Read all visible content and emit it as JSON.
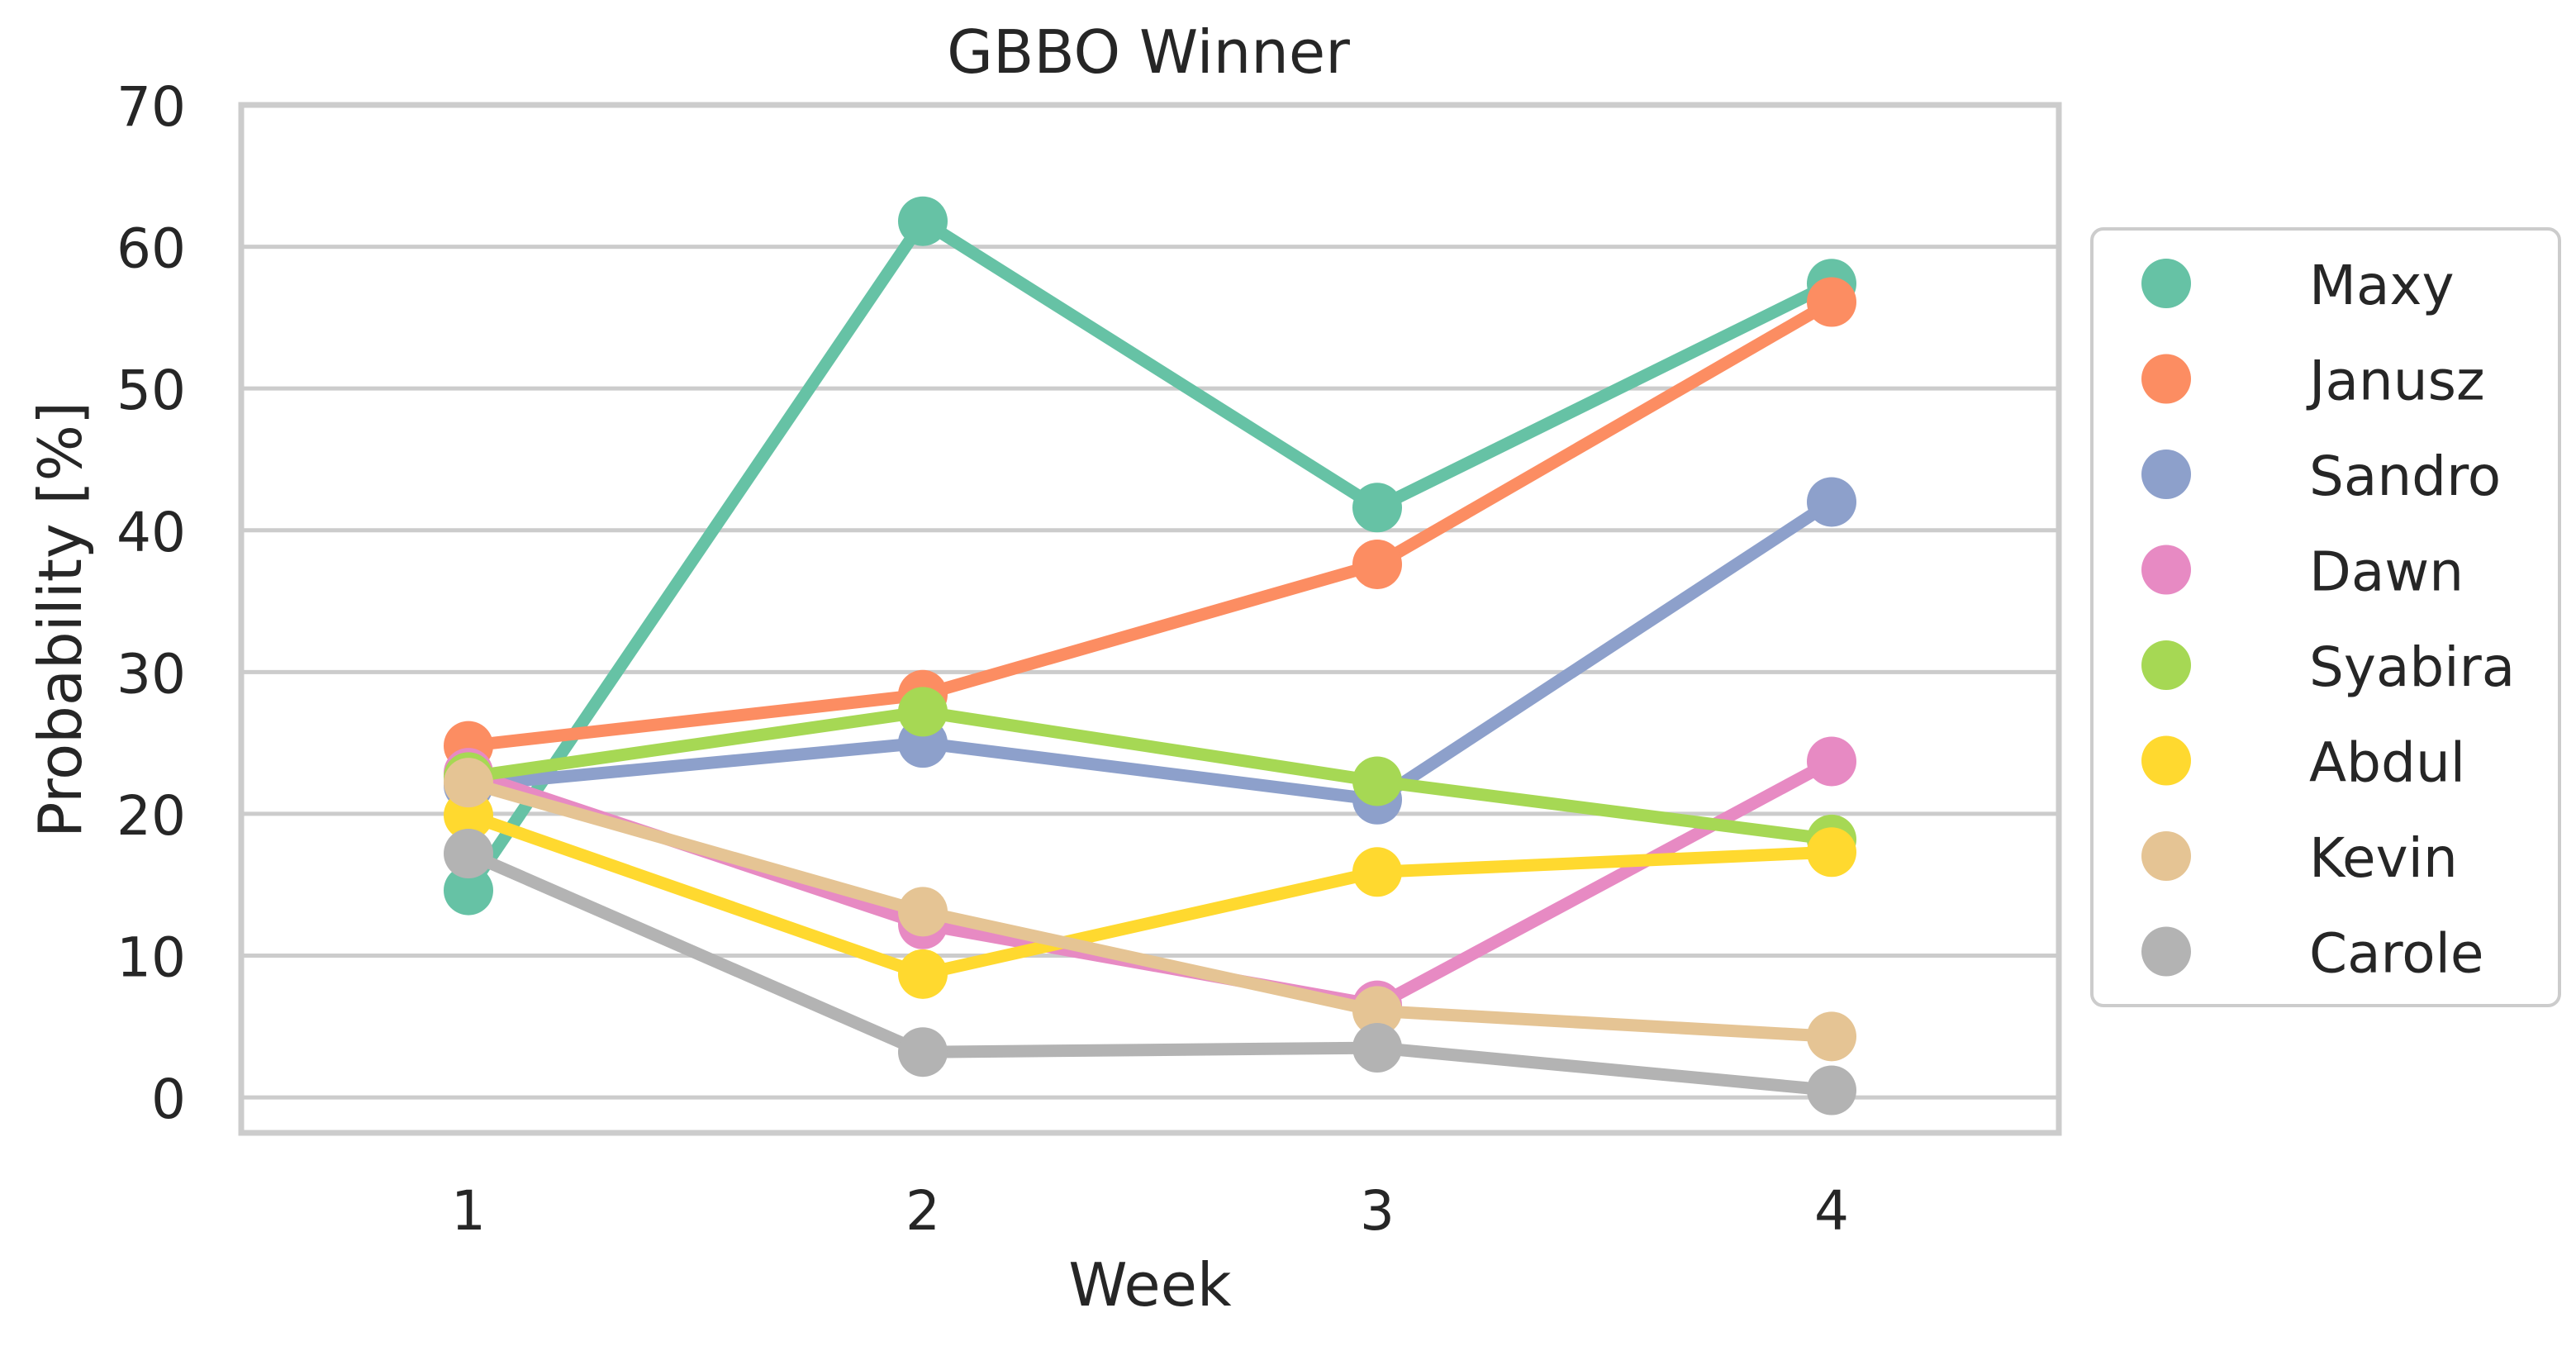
{
  "chart_data": {
    "type": "line",
    "title": "GBBO Winner",
    "xlabel": "Week",
    "ylabel": "Probability [%]",
    "x": [
      1,
      2,
      3,
      4
    ],
    "xlim": [
      0.5,
      4.5
    ],
    "ylim": [
      -2.5,
      70
    ],
    "yticks": [
      0,
      10,
      20,
      30,
      40,
      50,
      60,
      70
    ],
    "grid": "horizontal",
    "legend_position": "right-outside",
    "series": [
      {
        "name": "Maxy",
        "color": "#66c2a5",
        "values": [
          14.6,
          61.8,
          41.6,
          57.4
        ]
      },
      {
        "name": "Janusz",
        "color": "#fc8d62",
        "values": [
          24.8,
          28.4,
          37.6,
          56.1
        ]
      },
      {
        "name": "Sandro",
        "color": "#8da0cb",
        "values": [
          22.0,
          25.0,
          21.0,
          42.0
        ]
      },
      {
        "name": "Dawn",
        "color": "#e78ac3",
        "values": [
          22.9,
          12.2,
          6.5,
          23.7
        ]
      },
      {
        "name": "Syabira",
        "color": "#a6d854",
        "values": [
          22.6,
          27.2,
          22.3,
          18.2
        ]
      },
      {
        "name": "Abdul",
        "color": "#ffd92f",
        "values": [
          19.9,
          8.7,
          15.9,
          17.3
        ]
      },
      {
        "name": "Kevin",
        "color": "#e5c494",
        "values": [
          22.2,
          13.1,
          6.1,
          4.3
        ]
      },
      {
        "name": "Carole",
        "color": "#b3b3b3",
        "values": [
          17.2,
          3.2,
          3.5,
          0.5
        ]
      }
    ]
  }
}
